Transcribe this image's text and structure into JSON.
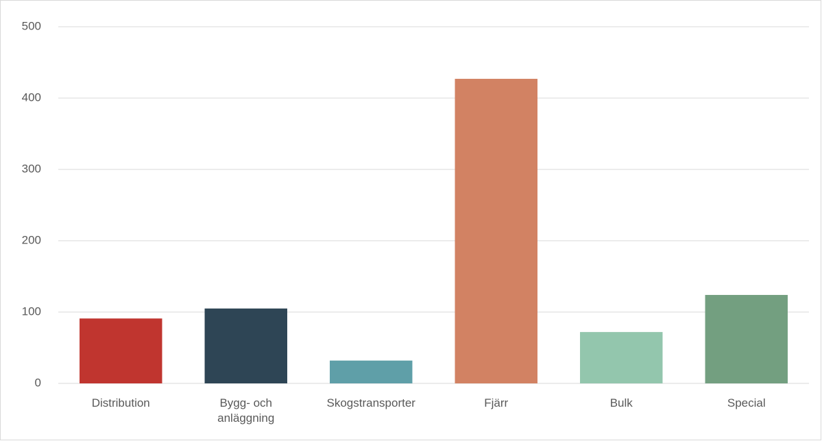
{
  "chart_data": {
    "type": "bar",
    "categories": [
      "Distribution",
      "Bygg- och anläggning",
      "Skogstransporter",
      "Fjärr",
      "Bulk",
      "Special"
    ],
    "values": [
      91,
      105,
      32,
      427,
      72,
      124
    ],
    "colors": [
      "#c0352f",
      "#2e4555",
      "#5f9fa8",
      "#d28263",
      "#93c6ad",
      "#739f80"
    ],
    "ylim": [
      0,
      500
    ],
    "yticks": [
      0,
      100,
      200,
      300,
      400,
      500
    ],
    "grid": true
  }
}
